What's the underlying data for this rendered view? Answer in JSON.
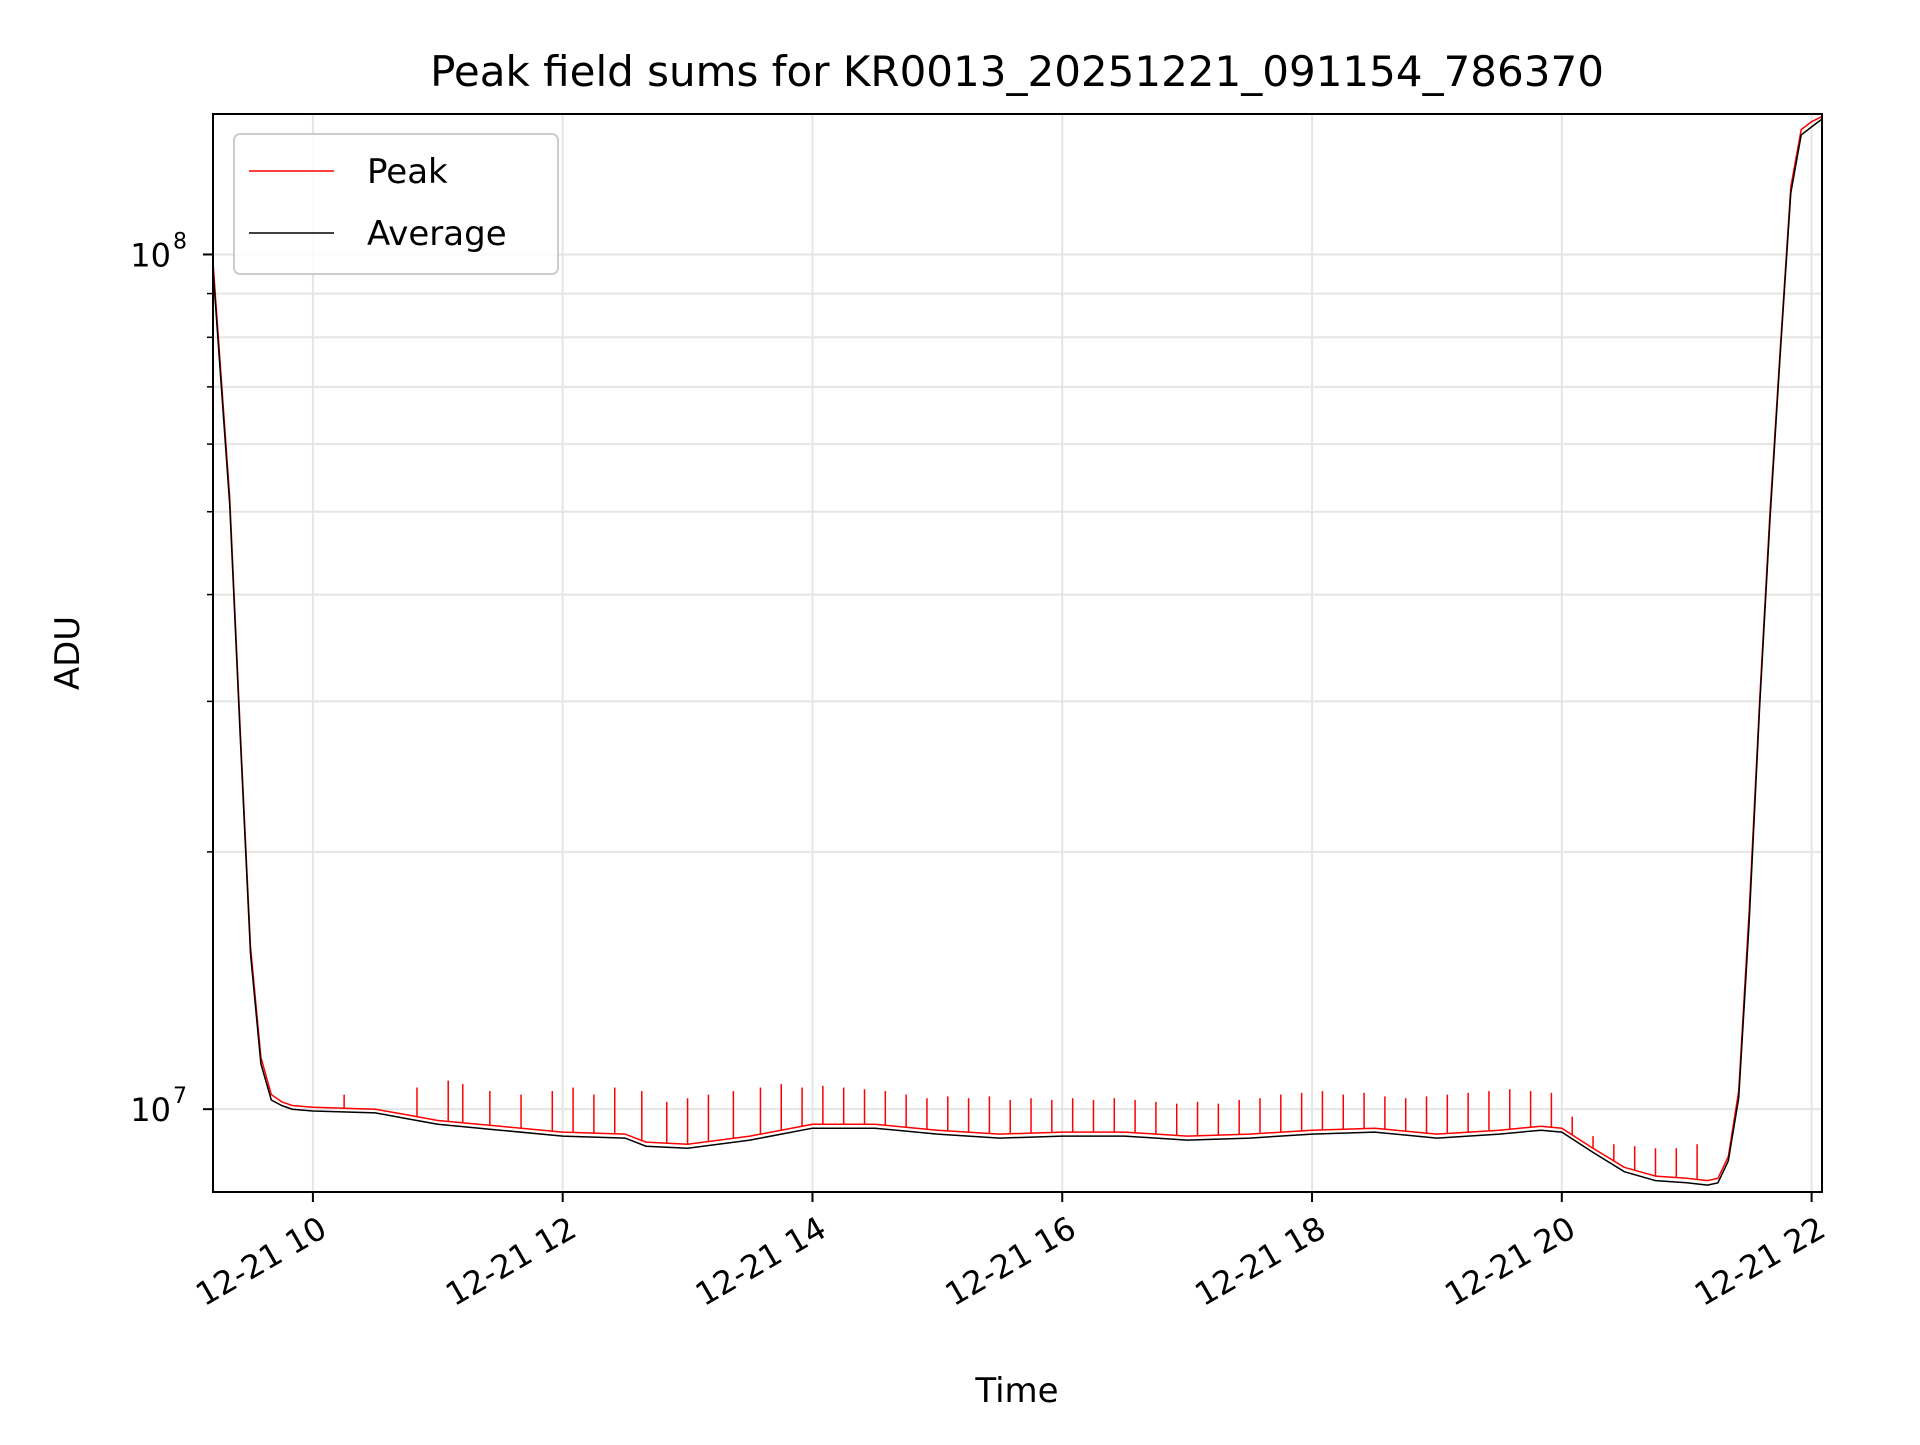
{
  "chart_data": {
    "type": "line",
    "title": "Peak field sums for KR0013_20251221_091154_786370",
    "xlabel": "Time",
    "ylabel": "ADU",
    "yscale": "log",
    "x_axis": "datetime",
    "xlim": [
      "2025-12-21T09:12:00",
      "2025-12-21T22:05:00"
    ],
    "ylim": [
      8000000,
      146000000
    ],
    "x_ticks": [
      {
        "value": "2025-12-21T10:00:00",
        "label": "12-21 10"
      },
      {
        "value": "2025-12-21T12:00:00",
        "label": "12-21 12"
      },
      {
        "value": "2025-12-21T14:00:00",
        "label": "12-21 14"
      },
      {
        "value": "2025-12-21T16:00:00",
        "label": "12-21 16"
      },
      {
        "value": "2025-12-21T18:00:00",
        "label": "12-21 18"
      },
      {
        "value": "2025-12-21T20:00:00",
        "label": "12-21 20"
      },
      {
        "value": "2025-12-21T22:00:00",
        "label": "12-21 22"
      }
    ],
    "y_ticks": [
      {
        "value": 10000000,
        "label_base": "10",
        "label_exp": "7"
      },
      {
        "value": 100000000,
        "label_base": "10",
        "label_exp": "8"
      }
    ],
    "grid": true,
    "legend_position": "top-left",
    "series": [
      {
        "name": "Peak",
        "color": "#ff0000",
        "x": [
          "2025-12-21T09:12:00",
          "2025-12-21T09:20:00",
          "2025-12-21T09:25:00",
          "2025-12-21T09:30:00",
          "2025-12-21T09:35:00",
          "2025-12-21T09:40:00",
          "2025-12-21T09:45:00",
          "2025-12-21T09:50:00",
          "2025-12-21T10:00:00",
          "2025-12-21T10:30:00",
          "2025-12-21T10:45:00",
          "2025-12-21T11:00:00",
          "2025-12-21T11:30:00",
          "2025-12-21T12:00:00",
          "2025-12-21T12:30:00",
          "2025-12-21T12:40:00",
          "2025-12-21T13:00:00",
          "2025-12-21T13:30:00",
          "2025-12-21T14:00:00",
          "2025-12-21T14:30:00",
          "2025-12-21T15:00:00",
          "2025-12-21T15:30:00",
          "2025-12-21T16:00:00",
          "2025-12-21T16:30:00",
          "2025-12-21T17:00:00",
          "2025-12-21T17:30:00",
          "2025-12-21T18:00:00",
          "2025-12-21T18:30:00",
          "2025-12-21T19:00:00",
          "2025-12-21T19:30:00",
          "2025-12-21T19:50:00",
          "2025-12-21T20:00:00",
          "2025-12-21T20:15:00",
          "2025-12-21T20:30:00",
          "2025-12-21T20:45:00",
          "2025-12-21T21:00:00",
          "2025-12-21T21:10:00",
          "2025-12-21T21:15:00",
          "2025-12-21T21:20:00",
          "2025-12-21T21:25:00",
          "2025-12-21T21:30:00",
          "2025-12-21T21:35:00",
          "2025-12-21T21:40:00",
          "2025-12-21T21:45:00",
          "2025-12-21T21:50:00",
          "2025-12-21T21:55:00",
          "2025-12-21T22:00:00",
          "2025-12-21T22:05:00"
        ],
        "y": [
          98000000,
          52000000,
          28000000,
          15500000,
          11500000,
          10400000,
          10200000,
          10100000,
          10050000,
          10000000,
          9850000,
          9700000,
          9550000,
          9400000,
          9350000,
          9150000,
          9100000,
          9300000,
          9600000,
          9600000,
          9450000,
          9350000,
          9400000,
          9400000,
          9300000,
          9350000,
          9450000,
          9500000,
          9350000,
          9450000,
          9550000,
          9500000,
          9000000,
          8550000,
          8350000,
          8300000,
          8250000,
          8300000,
          8800000,
          10500000,
          17000000,
          30000000,
          50000000,
          78000000,
          120000000,
          140000000,
          143000000,
          145000000
        ]
      },
      {
        "name": "Average",
        "color": "#000000",
        "x": [
          "2025-12-21T09:12:00",
          "2025-12-21T09:20:00",
          "2025-12-21T09:25:00",
          "2025-12-21T09:30:00",
          "2025-12-21T09:35:00",
          "2025-12-21T09:40:00",
          "2025-12-21T09:45:00",
          "2025-12-21T09:50:00",
          "2025-12-21T10:00:00",
          "2025-12-21T10:30:00",
          "2025-12-21T10:45:00",
          "2025-12-21T11:00:00",
          "2025-12-21T11:30:00",
          "2025-12-21T12:00:00",
          "2025-12-21T12:30:00",
          "2025-12-21T12:40:00",
          "2025-12-21T13:00:00",
          "2025-12-21T13:30:00",
          "2025-12-21T14:00:00",
          "2025-12-21T14:30:00",
          "2025-12-21T15:00:00",
          "2025-12-21T15:30:00",
          "2025-12-21T16:00:00",
          "2025-12-21T16:30:00",
          "2025-12-21T17:00:00",
          "2025-12-21T17:30:00",
          "2025-12-21T18:00:00",
          "2025-12-21T18:30:00",
          "2025-12-21T19:00:00",
          "2025-12-21T19:30:00",
          "2025-12-21T19:50:00",
          "2025-12-21T20:00:00",
          "2025-12-21T20:15:00",
          "2025-12-21T20:30:00",
          "2025-12-21T20:45:00",
          "2025-12-21T21:00:00",
          "2025-12-21T21:10:00",
          "2025-12-21T21:15:00",
          "2025-12-21T21:20:00",
          "2025-12-21T21:25:00",
          "2025-12-21T21:30:00",
          "2025-12-21T21:35:00",
          "2025-12-21T21:40:00",
          "2025-12-21T21:45:00",
          "2025-12-21T21:50:00",
          "2025-12-21T21:55:00",
          "2025-12-21T22:00:00",
          "2025-12-21T22:05:00"
        ],
        "y": [
          96000000,
          51000000,
          27500000,
          15200000,
          11300000,
          10250000,
          10100000,
          10000000,
          9950000,
          9900000,
          9750000,
          9600000,
          9450000,
          9300000,
          9250000,
          9050000,
          9000000,
          9200000,
          9500000,
          9500000,
          9350000,
          9250000,
          9300000,
          9300000,
          9200000,
          9250000,
          9350000,
          9400000,
          9250000,
          9350000,
          9450000,
          9400000,
          8900000,
          8450000,
          8250000,
          8200000,
          8150000,
          8200000,
          8700000,
          10300000,
          16500000,
          29500000,
          49000000,
          77000000,
          118000000,
          138000000,
          141000000,
          144000000
        ]
      }
    ],
    "spikes": {
      "series": "Peak",
      "description_free": true,
      "times": [
        "2025-12-21T10:15:00",
        "2025-12-21T10:50:00",
        "2025-12-21T11:05:00",
        "2025-12-21T11:12:00",
        "2025-12-21T11:25:00",
        "2025-12-21T11:40:00",
        "2025-12-21T11:55:00",
        "2025-12-21T12:05:00",
        "2025-12-21T12:15:00",
        "2025-12-21T12:25:00",
        "2025-12-21T12:38:00",
        "2025-12-21T12:50:00",
        "2025-12-21T13:00:00",
        "2025-12-21T13:10:00",
        "2025-12-21T13:22:00",
        "2025-12-21T13:35:00",
        "2025-12-21T13:45:00",
        "2025-12-21T13:55:00",
        "2025-12-21T14:05:00",
        "2025-12-21T14:15:00",
        "2025-12-21T14:25:00",
        "2025-12-21T14:35:00",
        "2025-12-21T14:45:00",
        "2025-12-21T14:55:00",
        "2025-12-21T15:05:00",
        "2025-12-21T15:15:00",
        "2025-12-21T15:25:00",
        "2025-12-21T15:35:00",
        "2025-12-21T15:45:00",
        "2025-12-21T15:55:00",
        "2025-12-21T16:05:00",
        "2025-12-21T16:15:00",
        "2025-12-21T16:25:00",
        "2025-12-21T16:35:00",
        "2025-12-21T16:45:00",
        "2025-12-21T16:55:00",
        "2025-12-21T17:05:00",
        "2025-12-21T17:15:00",
        "2025-12-21T17:25:00",
        "2025-12-21T17:35:00",
        "2025-12-21T17:45:00",
        "2025-12-21T17:55:00",
        "2025-12-21T18:05:00",
        "2025-12-21T18:15:00",
        "2025-12-21T18:25:00",
        "2025-12-21T18:35:00",
        "2025-12-21T18:45:00",
        "2025-12-21T18:55:00",
        "2025-12-21T19:05:00",
        "2025-12-21T19:15:00",
        "2025-12-21T19:25:00",
        "2025-12-21T19:35:00",
        "2025-12-21T19:45:00",
        "2025-12-21T19:55:00",
        "2025-12-21T20:05:00",
        "2025-12-21T20:15:00",
        "2025-12-21T20:25:00",
        "2025-12-21T20:35:00",
        "2025-12-21T20:45:00",
        "2025-12-21T20:55:00",
        "2025-12-21T21:05:00"
      ],
      "values": [
        10400000,
        10600000,
        10800000,
        10700000,
        10500000,
        10400000,
        10500000,
        10600000,
        10400000,
        10600000,
        10500000,
        10200000,
        10300000,
        10400000,
        10500000,
        10600000,
        10700000,
        10600000,
        10650000,
        10600000,
        10550000,
        10500000,
        10400000,
        10300000,
        10350000,
        10300000,
        10350000,
        10250000,
        10300000,
        10250000,
        10300000,
        10250000,
        10300000,
        10250000,
        10200000,
        10150000,
        10200000,
        10150000,
        10250000,
        10300000,
        10400000,
        10450000,
        10500000,
        10400000,
        10450000,
        10350000,
        10300000,
        10350000,
        10400000,
        10450000,
        10500000,
        10550000,
        10500000,
        10450000,
        9800000,
        9300000,
        9100000,
        9050000,
        9000000,
        9000000,
        9100000
      ]
    }
  }
}
